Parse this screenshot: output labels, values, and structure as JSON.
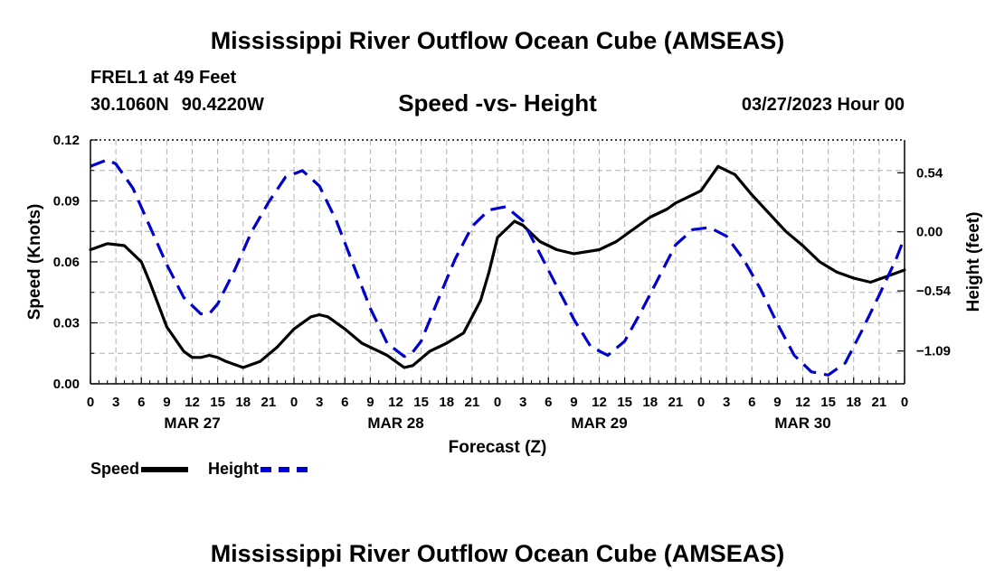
{
  "page": {
    "title": "Mississippi River Outflow Ocean Cube (AMSEAS)",
    "station": "FREL1 at 49 Feet",
    "lat": "30.1060N",
    "lon": "90.4220W",
    "subtitle": "Speed -vs- Height",
    "datetime": "03/27/2023 Hour 00",
    "bottom_title": "Mississippi River Outflow Ocean Cube (AMSEAS)"
  },
  "legend": {
    "speed_label": "Speed",
    "height_label": "Height"
  },
  "colors": {
    "speed": "#000000",
    "height": "#0000cc",
    "grid": "#b0b0b0"
  },
  "chart_data": {
    "type": "line",
    "xlabel": "Forecast (Z)",
    "ylabel": "Speed (Knots)",
    "ylabel_right": "Height (feet)",
    "x_range_hours": [
      0,
      96
    ],
    "ylim": [
      0,
      0.12
    ],
    "ylim_right": [
      -1.39,
      0.84
    ],
    "x_tick_labels": [
      "0",
      "3",
      "6",
      "9",
      "12",
      "15",
      "18",
      "21",
      "0",
      "3",
      "6",
      "9",
      "12",
      "15",
      "18",
      "21",
      "0",
      "3",
      "6",
      "9",
      "12",
      "15",
      "18",
      "21",
      "0",
      "3",
      "6",
      "9",
      "12",
      "15",
      "18",
      "21",
      "0"
    ],
    "day_labels": [
      {
        "label": "MAR 27",
        "hour": 12
      },
      {
        "label": "MAR 28",
        "hour": 36
      },
      {
        "label": "MAR 29",
        "hour": 60
      },
      {
        "label": "MAR 30",
        "hour": 84
      }
    ],
    "y_ticks": [
      0,
      0.03,
      0.06,
      0.09,
      0.12
    ],
    "y_tick_labels": [
      "0.00",
      "0.03",
      "0.06",
      "0.09",
      "0.12"
    ],
    "y_ticks_right": [
      0.54,
      0.0,
      -0.54,
      -1.09
    ],
    "y_tick_labels_right": [
      "0.54",
      "0.00",
      "−0.54",
      "−1.09"
    ],
    "series": [
      {
        "name": "Speed",
        "axis": "left",
        "style": "solid",
        "x": [
          0,
          2,
          4,
          6,
          7,
          9,
          11,
          12,
          13,
          14,
          15,
          16,
          18,
          20,
          22,
          24,
          26,
          27,
          28,
          30,
          32,
          34,
          35,
          36,
          37,
          38,
          40,
          42,
          44,
          46,
          47,
          48,
          50,
          51,
          53,
          55,
          57,
          60,
          62,
          64,
          66,
          68,
          69,
          70,
          71,
          72,
          74,
          76,
          78,
          80,
          82,
          84,
          86,
          88,
          90,
          92,
          94,
          96
        ],
        "values": [
          0.066,
          0.069,
          0.068,
          0.06,
          0.05,
          0.028,
          0.016,
          0.013,
          0.013,
          0.014,
          0.013,
          0.011,
          0.008,
          0.011,
          0.018,
          0.027,
          0.033,
          0.034,
          0.033,
          0.027,
          0.02,
          0.016,
          0.014,
          0.011,
          0.008,
          0.009,
          0.016,
          0.02,
          0.025,
          0.041,
          0.055,
          0.072,
          0.08,
          0.078,
          0.07,
          0.066,
          0.064,
          0.066,
          0.07,
          0.076,
          0.082,
          0.086,
          0.089,
          0.091,
          0.093,
          0.095,
          0.107,
          0.103,
          0.093,
          0.084,
          0.075,
          0.068,
          0.06,
          0.055,
          0.052,
          0.05,
          0.053,
          0.056
        ]
      },
      {
        "name": "Height",
        "axis": "right",
        "style": "dashed",
        "x": [
          0,
          2,
          3,
          5,
          7,
          9,
          11,
          13,
          14,
          15,
          17,
          19,
          21,
          23,
          25,
          27,
          29,
          31,
          33,
          35,
          37,
          38,
          39,
          41,
          43,
          45,
          47,
          49,
          51,
          52,
          53,
          55,
          57,
          59,
          61,
          63,
          65,
          67,
          69,
          71,
          73,
          75,
          77,
          79,
          81,
          83,
          85,
          87,
          89,
          91,
          93,
          95,
          96
        ],
        "values": [
          0.6,
          0.66,
          0.62,
          0.4,
          0.05,
          -0.3,
          -0.6,
          -0.75,
          -0.75,
          -0.66,
          -0.35,
          0.0,
          0.27,
          0.5,
          0.56,
          0.42,
          0.1,
          -0.3,
          -0.7,
          -1.02,
          -1.14,
          -1.1,
          -1.0,
          -0.62,
          -0.25,
          0.05,
          0.2,
          0.23,
          0.1,
          -0.05,
          -0.2,
          -0.5,
          -0.8,
          -1.05,
          -1.13,
          -1.0,
          -0.72,
          -0.42,
          -0.12,
          0.02,
          0.04,
          -0.04,
          -0.25,
          -0.52,
          -0.84,
          -1.13,
          -1.28,
          -1.31,
          -1.2,
          -0.9,
          -0.58,
          -0.25,
          -0.05
        ]
      }
    ]
  }
}
